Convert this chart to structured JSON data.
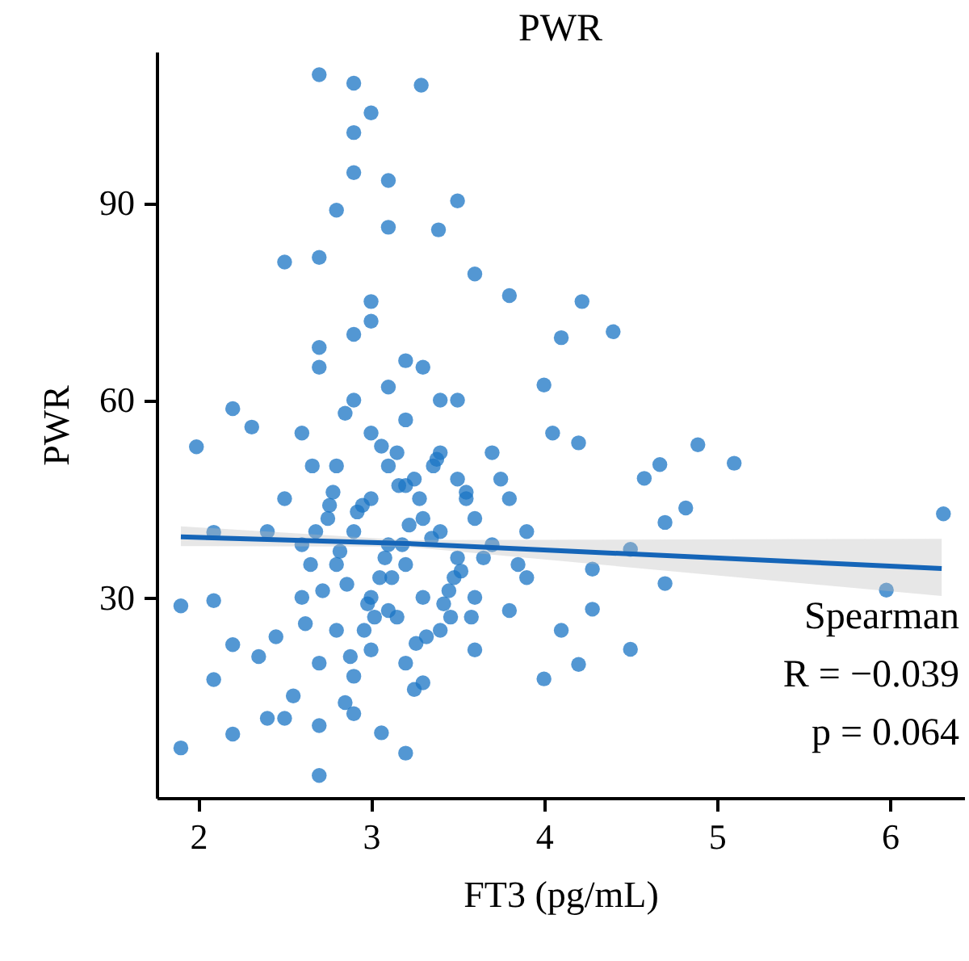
{
  "chart_data": {
    "type": "scatter",
    "title": "PWR",
    "xlabel": "FT3 (pg/mL)",
    "ylabel": "PWR",
    "xlim": [
      1.76,
      6.43
    ],
    "xticks": [
      2,
      3,
      4,
      5,
      6
    ],
    "ylim": [
      -0.5,
      113
    ],
    "yticks": [
      30,
      60,
      90
    ],
    "grid": false,
    "annotations": [
      "Spearman",
      "R = −0.039",
      "p = 0.064"
    ],
    "series": [
      {
        "type": "scatter",
        "marker": "circle",
        "color": "#1a74c4",
        "x": [
          2.62,
          2.72,
          2.82,
          2.92,
          3.02,
          3.12,
          3.22,
          3.32,
          3.42,
          3.52,
          2.68,
          2.78,
          2.88,
          2.98,
          3.08,
          3.18,
          3.28,
          3.38,
          3.48,
          3.58,
          2.66,
          2.76,
          2.86,
          2.96,
          3.06,
          3.16,
          3.26,
          3.36,
          3.46,
          2.7,
          2.9,
          3.29,
          3.0,
          2.9,
          2.9,
          3.1,
          3.5,
          2.8,
          3.1,
          3.39,
          2.5,
          2.7,
          3.6,
          3.8,
          4.22,
          4.4,
          4.1,
          4.0,
          2.2,
          1.99,
          2.31,
          4.89,
          5.1,
          4.67,
          4.58,
          4.2,
          4.82,
          4.7,
          6.31,
          4.5,
          4.7,
          5.98,
          4.5,
          1.9,
          1.9,
          2.7,
          3.2,
          2.2,
          3.06,
          2.09,
          2.4,
          2.5,
          2.9,
          2.7,
          2.09,
          2.2,
          2.09,
          4.0,
          4.2,
          4.28,
          4.28,
          2.5,
          2.6,
          2.6,
          2.7,
          2.7,
          2.8,
          2.8,
          2.8,
          2.9,
          2.9,
          2.9,
          2.9,
          3.0,
          3.0,
          3.0,
          3.0,
          3.0,
          3.1,
          3.1,
          3.1,
          3.1,
          3.2,
          3.2,
          3.2,
          3.2,
          3.3,
          3.3,
          3.3,
          3.3,
          3.4,
          3.4,
          3.4,
          3.5,
          3.5,
          3.5,
          3.6,
          3.6,
          3.6,
          3.7,
          3.7,
          3.8,
          3.8,
          3.9,
          3.9,
          2.55,
          2.65,
          2.75,
          2.85,
          2.95,
          3.05,
          3.15,
          3.25,
          3.35,
          3.45,
          3.55,
          3.65,
          2.45,
          2.4,
          3.75,
          3.85,
          4.05,
          4.1,
          2.35,
          2.6,
          2.7,
          3.0,
          3.2,
          3.4,
          2.85,
          3.15,
          3.25,
          3.55
        ],
        "values": [
          26,
          31,
          37,
          43,
          27,
          33,
          41,
          24,
          29,
          34,
          40,
          46,
          21,
          29,
          36,
          38,
          45,
          51,
          33,
          27,
          50,
          44,
          32,
          25,
          53,
          47,
          23,
          50,
          27,
          109.5,
          108.2,
          107.9,
          103.7,
          100.7,
          94.6,
          93.4,
          90.3,
          88.9,
          86.3,
          85.9,
          81.0,
          81.7,
          79.2,
          75.9,
          75.0,
          70.4,
          69.5,
          62.3,
          58.7,
          52.9,
          55.9,
          53.2,
          50.4,
          50.2,
          48.1,
          53.5,
          43.6,
          41.4,
          42.7,
          37.3,
          32.1,
          31.1,
          22.1,
          28.7,
          7.1,
          2.9,
          6.3,
          9.2,
          9.4,
          17.5,
          11.6,
          11.6,
          12.3,
          10.5,
          39.9,
          22.8,
          29.5,
          17.6,
          19.8,
          28.2,
          34.3,
          45,
          30,
          55,
          20,
          65,
          35,
          50,
          25,
          40,
          60,
          18,
          70,
          30,
          45,
          55,
          22,
          75,
          38,
          50,
          28,
          62,
          35,
          47,
          20,
          57,
          42,
          30,
          65,
          17,
          40,
          52,
          25,
          36,
          48,
          60,
          30,
          42,
          22,
          38,
          52,
          28,
          45,
          33,
          40,
          15,
          35,
          42,
          58,
          44,
          33,
          27,
          48,
          39,
          31,
          45,
          36,
          24,
          40,
          48,
          35,
          55,
          25,
          21,
          38,
          68,
          72,
          66,
          60,
          14,
          52,
          16,
          46
        ]
      },
      {
        "type": "line",
        "color": "#1565b8",
        "x": [
          1.9,
          3.2,
          6.3
        ],
        "values": [
          39.2,
          38.2,
          34.4
        ],
        "lower": [
          37.8,
          37.7,
          30.2
        ],
        "upper": [
          40.8,
          38.7,
          38.9
        ]
      }
    ]
  }
}
